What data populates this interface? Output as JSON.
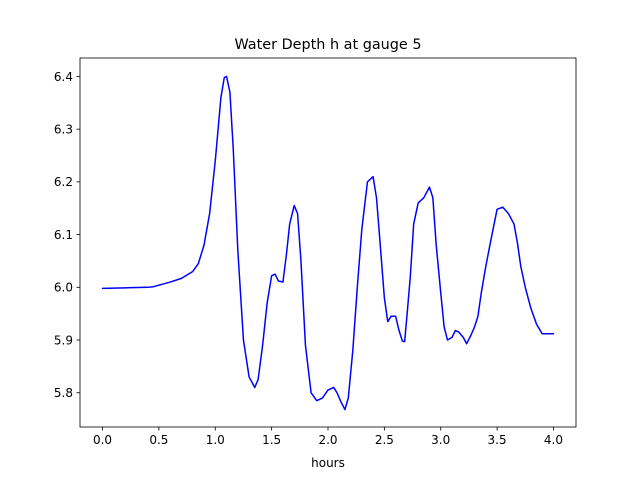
{
  "chart_data": {
    "type": "line",
    "title": "Water Depth h at gauge 5",
    "xlabel": "hours",
    "ylabel": "",
    "xlim": [
      -0.2,
      4.2
    ],
    "ylim": [
      5.735,
      6.435
    ],
    "grid": false,
    "xticks": [
      0.0,
      0.5,
      1.0,
      1.5,
      2.0,
      2.5,
      3.0,
      3.5,
      4.0
    ],
    "xtick_labels": [
      "0.0",
      "0.5",
      "1.0",
      "1.5",
      "2.0",
      "2.5",
      "3.0",
      "3.5",
      "4.0"
    ],
    "yticks": [
      5.8,
      5.9,
      6.0,
      6.1,
      6.2,
      6.3,
      6.4
    ],
    "ytick_labels": [
      "5.8",
      "5.9",
      "6.0",
      "6.1",
      "6.2",
      "6.3",
      "6.4"
    ],
    "series": [
      {
        "color": "#0000ff",
        "x": [
          0.0,
          0.2,
          0.4,
          0.45,
          0.5,
          0.6,
          0.7,
          0.8,
          0.85,
          0.9,
          0.95,
          1.0,
          1.05,
          1.08,
          1.1,
          1.13,
          1.16,
          1.2,
          1.25,
          1.3,
          1.35,
          1.38,
          1.42,
          1.46,
          1.5,
          1.53,
          1.56,
          1.6,
          1.63,
          1.66,
          1.7,
          1.73,
          1.76,
          1.8,
          1.85,
          1.9,
          1.95,
          2.0,
          2.05,
          2.08,
          2.11,
          2.15,
          2.18,
          2.22,
          2.26,
          2.3,
          2.35,
          2.4,
          2.43,
          2.46,
          2.5,
          2.53,
          2.56,
          2.58,
          2.6,
          2.63,
          2.66,
          2.68,
          2.7,
          2.73,
          2.76,
          2.8,
          2.85,
          2.9,
          2.93,
          2.96,
          3.0,
          3.03,
          3.06,
          3.1,
          3.13,
          3.16,
          3.2,
          3.23,
          3.27,
          3.3,
          3.33,
          3.36,
          3.4,
          3.45,
          3.5,
          3.55,
          3.6,
          3.65,
          3.68,
          3.71,
          3.75,
          3.8,
          3.85,
          3.9,
          3.95,
          4.0
        ],
        "y": [
          5.998,
          5.999,
          6.0,
          6.001,
          6.004,
          6.01,
          6.017,
          6.03,
          6.045,
          6.08,
          6.14,
          6.24,
          6.36,
          6.398,
          6.4,
          6.37,
          6.26,
          6.07,
          5.9,
          5.83,
          5.81,
          5.825,
          5.89,
          5.97,
          6.022,
          6.025,
          6.012,
          6.01,
          6.06,
          6.12,
          6.155,
          6.14,
          6.05,
          5.89,
          5.8,
          5.785,
          5.79,
          5.805,
          5.81,
          5.8,
          5.785,
          5.768,
          5.79,
          5.88,
          6.0,
          6.11,
          6.2,
          6.21,
          6.17,
          6.09,
          5.98,
          5.935,
          5.945,
          5.945,
          5.945,
          5.918,
          5.898,
          5.897,
          5.945,
          6.02,
          6.12,
          6.16,
          6.17,
          6.19,
          6.17,
          6.08,
          5.99,
          5.925,
          5.9,
          5.905,
          5.918,
          5.915,
          5.905,
          5.893,
          5.91,
          5.925,
          5.945,
          5.99,
          6.04,
          6.095,
          6.148,
          6.152,
          6.14,
          6.12,
          6.085,
          6.04,
          6.0,
          5.96,
          5.93,
          5.912,
          5.912,
          5.912
        ]
      }
    ]
  }
}
